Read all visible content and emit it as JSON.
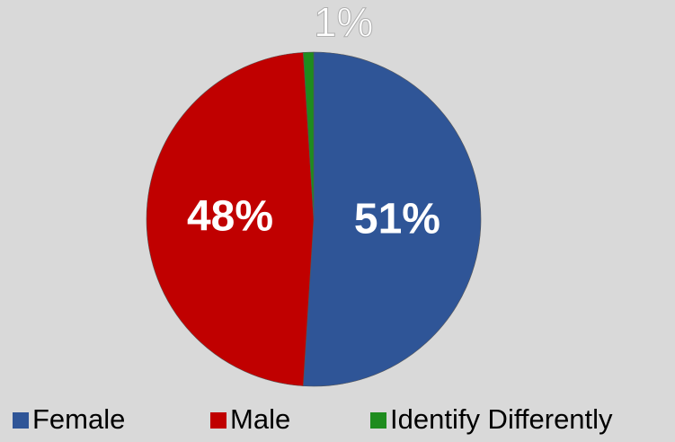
{
  "chart_data": {
    "type": "pie",
    "categories": [
      "Female",
      "Male",
      "Identify Differently"
    ],
    "values": [
      51,
      48,
      1
    ],
    "value_labels": [
      "51%",
      "48%",
      "1%"
    ],
    "colors": [
      "#2f5597",
      "#c00000",
      "#1e8c1e"
    ],
    "legend": "bottom"
  }
}
